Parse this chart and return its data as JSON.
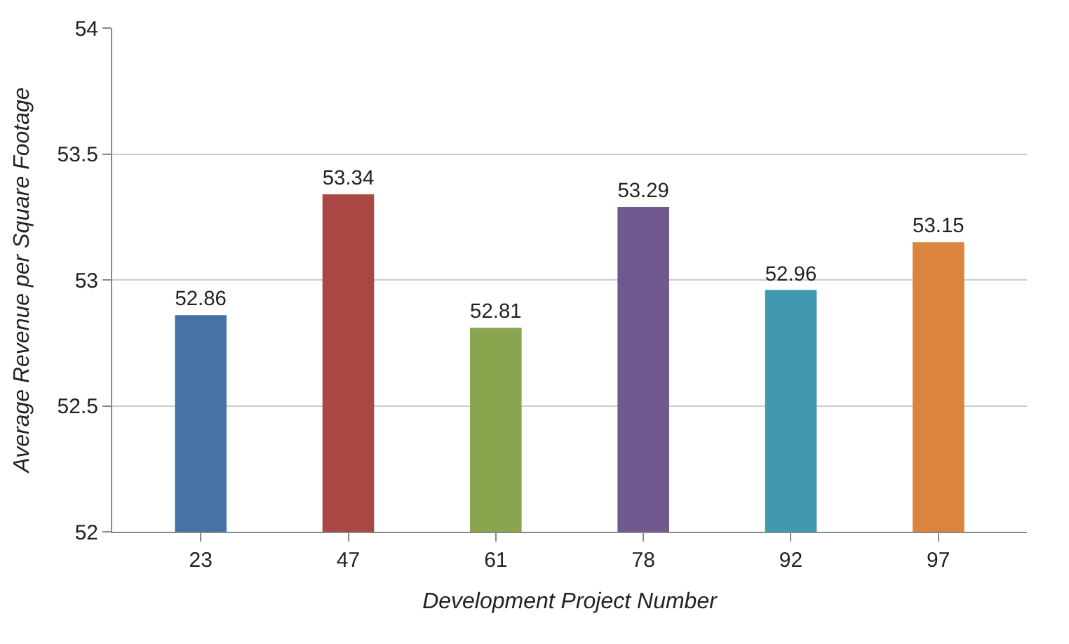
{
  "chart_data": {
    "type": "bar",
    "xlabel": "Development Project Number",
    "ylabel": "Average Revenue per Square Footage",
    "categories": [
      "23",
      "47",
      "61",
      "78",
      "92",
      "97"
    ],
    "values": [
      52.86,
      53.34,
      52.81,
      53.29,
      52.96,
      53.15
    ],
    "colors": [
      "#4672a8",
      "#aa4644",
      "#89a54e",
      "#71588f",
      "#4198af",
      "#db843d"
    ],
    "ylim": [
      52,
      54
    ],
    "yticks": [
      52,
      52.5,
      53,
      53.5,
      54
    ],
    "grid": "y",
    "data_labels": true
  }
}
